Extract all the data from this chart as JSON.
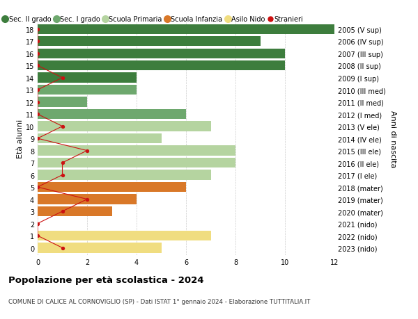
{
  "ages": [
    18,
    17,
    16,
    15,
    14,
    13,
    12,
    11,
    10,
    9,
    8,
    7,
    6,
    5,
    4,
    3,
    2,
    1,
    0
  ],
  "right_labels": [
    "2005 (V sup)",
    "2006 (IV sup)",
    "2007 (III sup)",
    "2008 (II sup)",
    "2009 (I sup)",
    "2010 (III med)",
    "2011 (II med)",
    "2012 (I med)",
    "2013 (V ele)",
    "2014 (IV ele)",
    "2015 (III ele)",
    "2016 (II ele)",
    "2017 (I ele)",
    "2018 (mater)",
    "2019 (mater)",
    "2020 (mater)",
    "2021 (nido)",
    "2022 (nido)",
    "2023 (nido)"
  ],
  "bar_values": [
    12,
    9,
    10,
    10,
    4,
    4,
    2,
    6,
    7,
    5,
    8,
    8,
    7,
    6,
    4,
    3,
    0,
    7,
    5
  ],
  "bar_colors": [
    "#3d7d3d",
    "#3d7d3d",
    "#3d7d3d",
    "#3d7d3d",
    "#3d7d3d",
    "#6ea86e",
    "#6ea86e",
    "#6ea86e",
    "#b5d4a0",
    "#b5d4a0",
    "#b5d4a0",
    "#b5d4a0",
    "#b5d4a0",
    "#d97828",
    "#d97828",
    "#d97828",
    "#f0dd80",
    "#f0dd80",
    "#f0dd80"
  ],
  "stranieri_x": [
    0,
    0,
    0,
    0,
    1,
    0,
    0,
    0,
    1,
    0,
    2,
    1,
    1,
    0,
    2,
    1,
    0,
    0,
    1
  ],
  "legend_labels": [
    "Sec. II grado",
    "Sec. I grado",
    "Scuola Primaria",
    "Scuola Infanzia",
    "Asilo Nido",
    "Stranieri"
  ],
  "legend_colors": [
    "#3d7d3d",
    "#6ea86e",
    "#b5d4a0",
    "#d97828",
    "#f0dd80",
    "#cc1111"
  ],
  "title": "Popolazione per età scolastica - 2024",
  "subtitle": "COMUNE DI CALICE AL CORNOVIGLIO (SP) - Dati ISTAT 1° gennaio 2024 - Elaborazione TUTTITALIA.IT",
  "ylabel_left": "Età alunni",
  "ylabel_right": "Anni di nascita",
  "xlim": [
    0,
    12
  ],
  "bg_color": "#ffffff",
  "grid_color": "#cccccc",
  "bar_height": 0.82,
  "stranieri_color": "#cc1111"
}
